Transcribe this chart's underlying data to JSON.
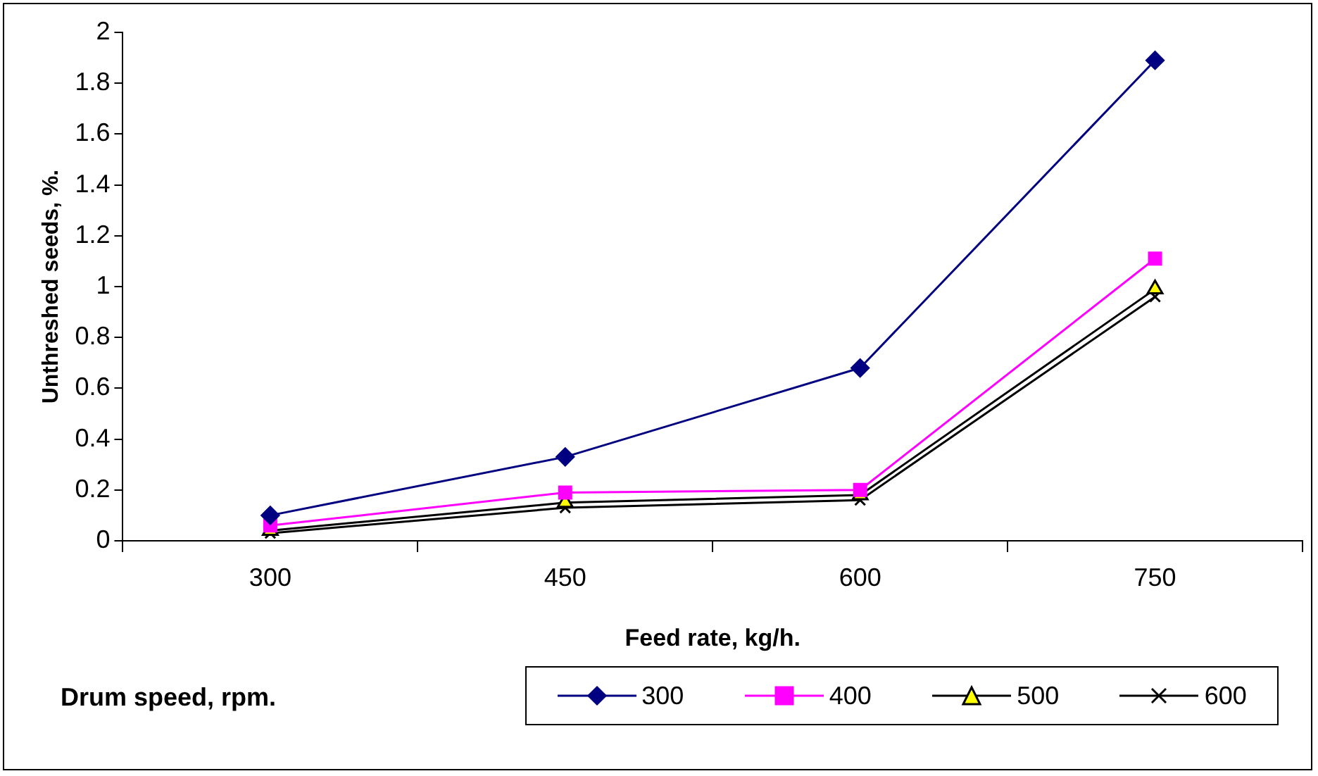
{
  "chart_data": {
    "type": "line",
    "xlabel": "Feed rate, kg/h.",
    "ylabel": "Unthreshed seeds, %.",
    "legend_title": "Drum speed, rpm.",
    "legend": "bottom",
    "grid": false,
    "categories": [
      "300",
      "450",
      "600",
      "750"
    ],
    "ylim": [
      0,
      2
    ],
    "yticks": [
      0,
      0.2,
      0.4,
      0.6,
      0.8,
      1,
      1.2,
      1.4,
      1.6,
      1.8,
      2
    ],
    "series": [
      {
        "name": "300",
        "color": "#000080",
        "marker": "diamond",
        "values": [
          0.1,
          0.33,
          0.68,
          1.89
        ]
      },
      {
        "name": "400",
        "color": "#ff00ff",
        "marker": "square",
        "values": [
          0.06,
          0.19,
          0.2,
          1.11
        ]
      },
      {
        "name": "500",
        "color": "#000000",
        "marker": "triangle",
        "values": [
          0.04,
          0.15,
          0.18,
          0.99
        ]
      },
      {
        "name": "600",
        "color": "#000000",
        "marker": "cross",
        "values": [
          0.03,
          0.13,
          0.16,
          0.96
        ]
      }
    ]
  }
}
